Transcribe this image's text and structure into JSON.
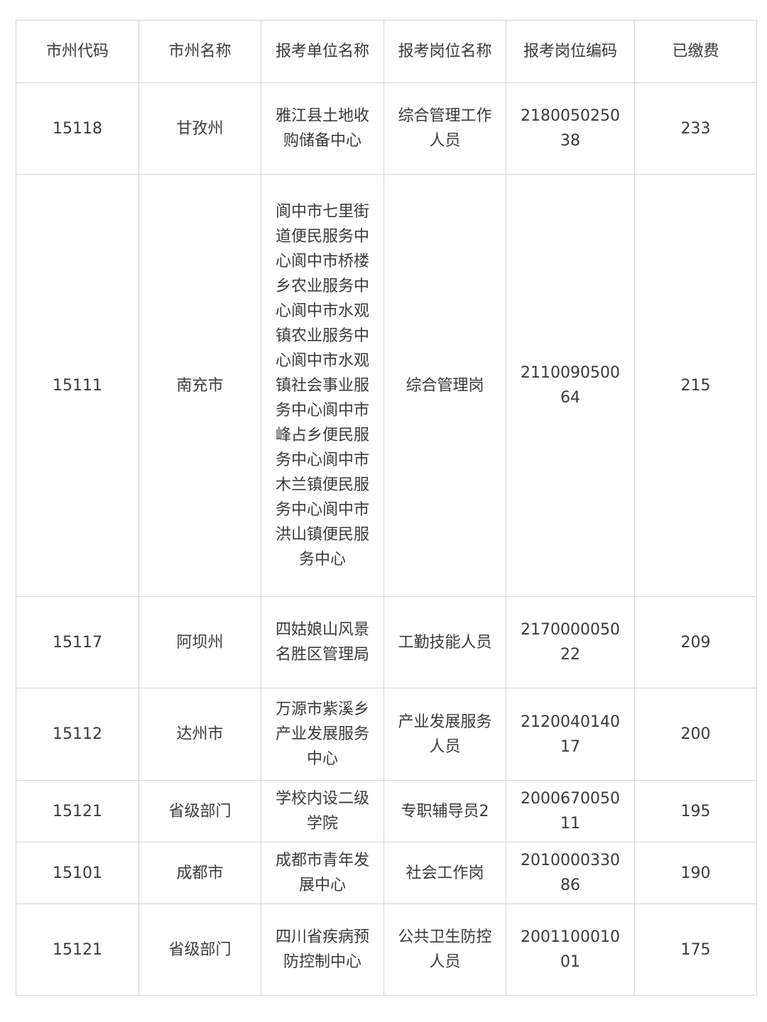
{
  "table": {
    "header": [
      "市州代码",
      "市州名称",
      "报考单位名称",
      "报考岗位名称",
      "报考岗位编码",
      "已缴费"
    ],
    "rows": [
      [
        "15118",
        "甘孜州",
        "雅江县土地收购储备中心",
        "综合管理工作人员",
        "218005025038",
        "233"
      ],
      [
        "15111",
        "南充市",
        "阆中市七里街道便民服务中心阆中市桥楼乡农业服务中心阆中市水观镇农业服务中心阆中市水观镇社会事业服务中心阆中市峰占乡便民服务中心阆中市木兰镇便民服务中心阆中市洪山镇便民服务中心",
        "综合管理岗",
        "211009050064",
        "215"
      ],
      [
        "15117",
        "阿坝州",
        "四姑娘山风景名胜区管理局",
        "工勤技能人员",
        "217000005022",
        "209"
      ],
      [
        "15112",
        "达州市",
        "万源市紫溪乡产业发展服务中心",
        "产业发展服务人员",
        "212004014017",
        "200"
      ],
      [
        "15121",
        "省级部门",
        "学校内设二级学院",
        "专职辅导员2",
        "200067005011",
        "195"
      ],
      [
        "15101",
        "成都市",
        "成都市青年发展中心",
        "社会工作岗",
        "201000033086",
        "190"
      ],
      [
        "15121",
        "省级部门",
        "四川省疾病预防控制中心",
        "公共卫生防控人员",
        "200110001001",
        "175"
      ]
    ]
  }
}
